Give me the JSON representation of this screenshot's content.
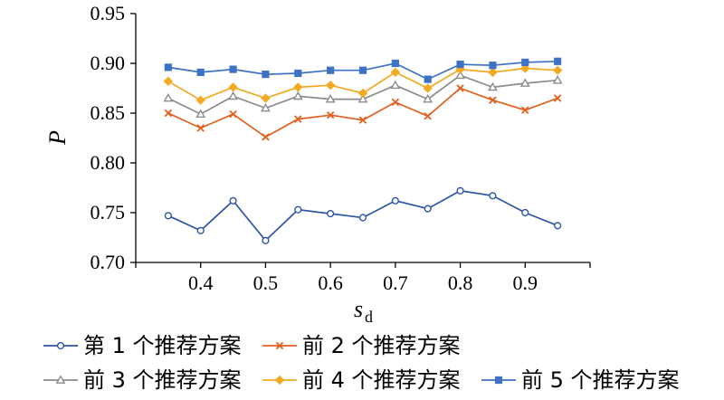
{
  "chart_data": {
    "type": "line",
    "x": [
      0.35,
      0.4,
      0.45,
      0.5,
      0.55,
      0.6,
      0.65,
      0.7,
      0.75,
      0.8,
      0.85,
      0.9,
      0.95
    ],
    "x_ticks": [
      "0.4",
      "0.5",
      "0.6",
      "0.7",
      "0.8",
      "0.9"
    ],
    "y_ticks": [
      "0.70",
      "0.75",
      "0.80",
      "0.85",
      "0.90",
      "0.95"
    ],
    "xlabel": "s",
    "xlabel_sub": "d",
    "ylabel": "P",
    "xlim": [
      0.3,
      1.0
    ],
    "ylim": [
      0.7,
      0.95
    ],
    "grid": false,
    "legend_position": "bottom",
    "series": [
      {
        "name": "第 1 个推荐方案",
        "color": "#2e55a5",
        "marker": "circle",
        "values": [
          0.747,
          0.732,
          0.762,
          0.722,
          0.753,
          0.749,
          0.745,
          0.762,
          0.754,
          0.772,
          0.767,
          0.75,
          0.737
        ]
      },
      {
        "name": "前 2 个推荐方案",
        "color": "#e2601f",
        "marker": "x",
        "values": [
          0.85,
          0.835,
          0.849,
          0.826,
          0.844,
          0.848,
          0.843,
          0.861,
          0.847,
          0.875,
          0.863,
          0.853,
          0.865
        ]
      },
      {
        "name": "前 3 个推荐方案",
        "color": "#8c8c8c",
        "marker": "triangle",
        "values": [
          0.865,
          0.849,
          0.867,
          0.855,
          0.867,
          0.864,
          0.864,
          0.878,
          0.864,
          0.888,
          0.876,
          0.88,
          0.883
        ]
      },
      {
        "name": "前 4 个推荐方案",
        "color": "#f3a921",
        "marker": "diamond",
        "values": [
          0.882,
          0.863,
          0.876,
          0.865,
          0.876,
          0.878,
          0.87,
          0.891,
          0.875,
          0.894,
          0.891,
          0.895,
          0.893
        ]
      },
      {
        "name": "前 5 个推荐方案",
        "color": "#3e72c4",
        "marker": "square",
        "values": [
          0.896,
          0.891,
          0.894,
          0.889,
          0.89,
          0.893,
          0.893,
          0.9,
          0.884,
          0.899,
          0.898,
          0.901,
          0.902
        ]
      }
    ]
  }
}
